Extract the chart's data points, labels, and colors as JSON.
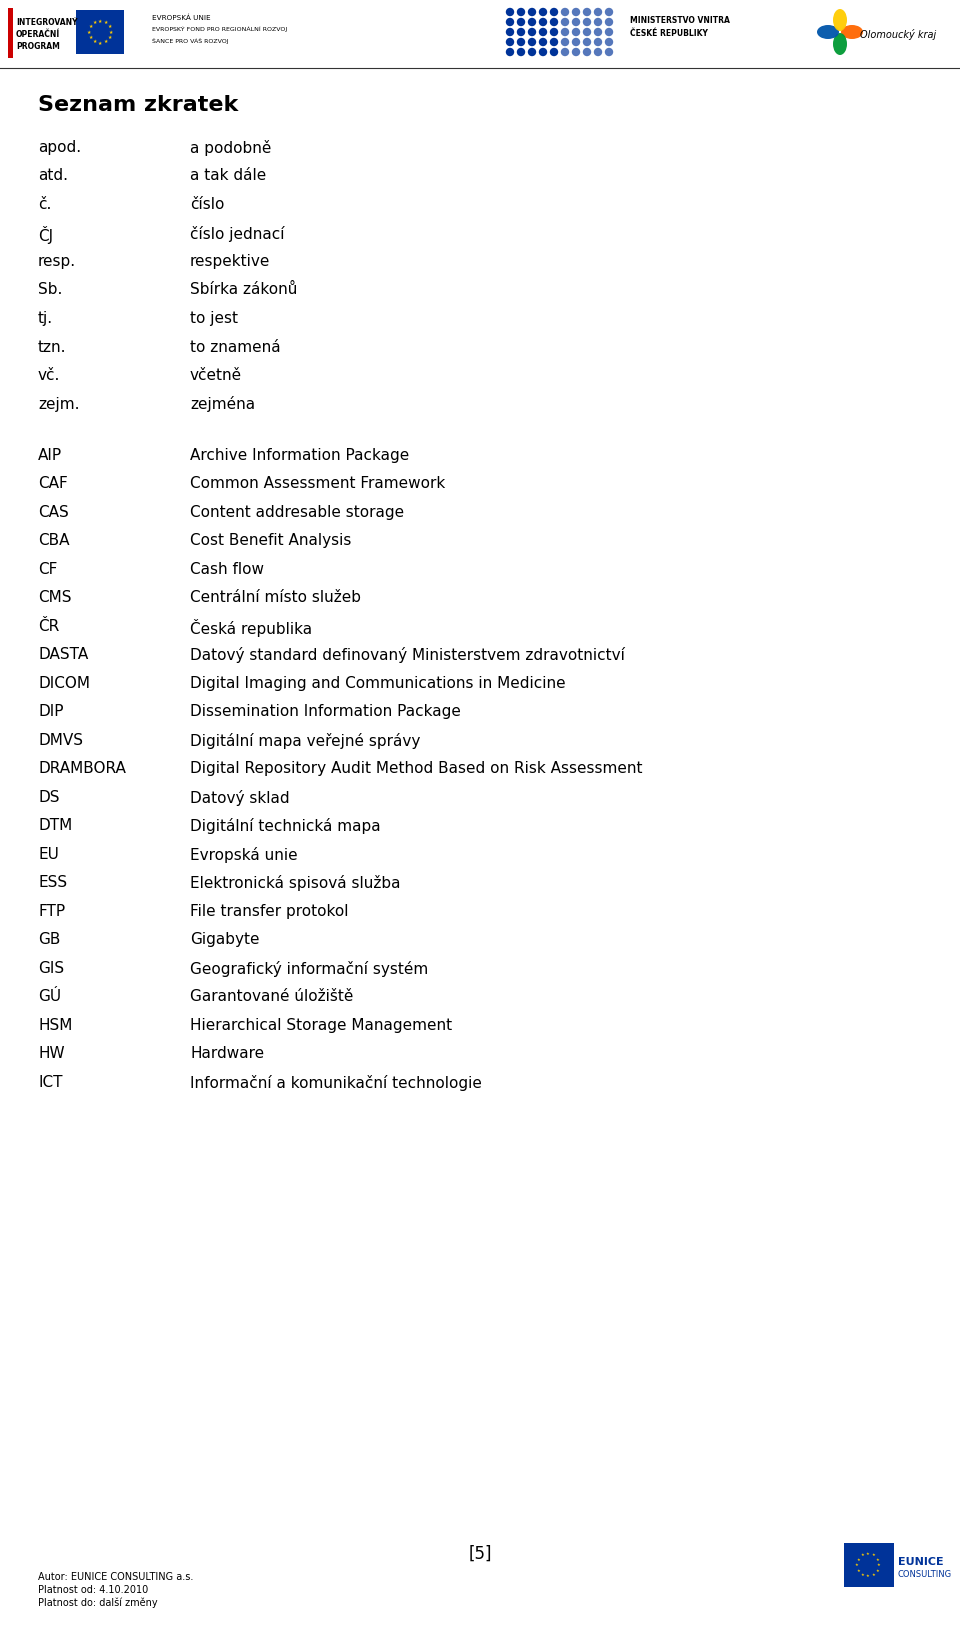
{
  "title": "Seznam zkratek",
  "abbreviations": [
    [
      "apod.",
      "a podobně"
    ],
    [
      "atd.",
      "a tak dále"
    ],
    [
      "č.",
      "číslo"
    ],
    [
      "ČJ",
      "číslo jednací"
    ],
    [
      "resp.",
      "respektive"
    ],
    [
      "Sb.",
      "Sbírka zákonů"
    ],
    [
      "tj.",
      "to jest"
    ],
    [
      "tzn.",
      "to znamená"
    ],
    [
      "vč.",
      "včetně"
    ],
    [
      "zejm.",
      "zejména"
    ],
    [
      "",
      ""
    ],
    [
      "AIP",
      "Archive Information Package"
    ],
    [
      "CAF",
      "Common Assessment Framework"
    ],
    [
      "CAS",
      "Content addresable storage"
    ],
    [
      "CBA",
      "Cost Benefit Analysis"
    ],
    [
      "CF",
      "Cash flow"
    ],
    [
      "CMS",
      "Centrální místo služeb"
    ],
    [
      "ČR",
      "Česká republika"
    ],
    [
      "DASTA",
      "Datový standard definovaný Ministerstvem zdravotnictví"
    ],
    [
      "DICOM",
      "Digital Imaging and Communications in Medicine"
    ],
    [
      "DIP",
      "Dissemination Information Package"
    ],
    [
      "DMVS",
      "Digitální mapa veřejné správy"
    ],
    [
      "DRAMBORA",
      "Digital Repository Audit Method Based on Risk Assessment"
    ],
    [
      "DS",
      "Datový sklad"
    ],
    [
      "DTM",
      "Digitální technická mapa"
    ],
    [
      "EU",
      "Evropská unie"
    ],
    [
      "ESS",
      "Elektronická spisová služba"
    ],
    [
      "FTP",
      "File transfer protokol"
    ],
    [
      "GB",
      "Gigabyte"
    ],
    [
      "GIS",
      "Geografický informační systém"
    ],
    [
      "GÚ",
      "Garantované úložiště"
    ],
    [
      "HSM",
      "Hierarchical Storage Management"
    ],
    [
      "HW",
      "Hardware"
    ],
    [
      "ICT",
      "Informační a komunikační technologie"
    ]
  ],
  "page_number": "[5]",
  "footer_line1": "Autor: EUNICE CONSULTING a.s.",
  "footer_line2": "Platnost od: 4.10.2010",
  "footer_line3": "Platnost do: další změny",
  "bg_color": "#ffffff",
  "text_color": "#000000",
  "header_bar_color": "#cc0000"
}
